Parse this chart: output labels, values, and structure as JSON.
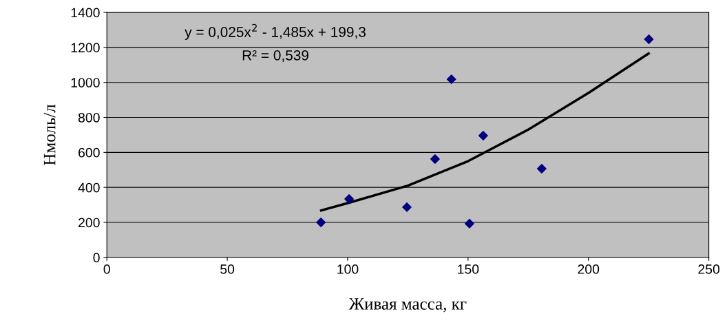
{
  "chart_data": {
    "type": "scatter",
    "xlabel": "Живая масса, кг",
    "ylabel": "Нмоль/л",
    "annotations": [
      "y = 0,025x$^{2}$ - 1,485x + 199,3",
      "R² = 0,539"
    ],
    "series": [
      {
        "color": "#000080",
        "marker": "diamond",
        "x": [
          88.9,
          100.6,
          124.6,
          136.3,
          143.1,
          150.6,
          156.3,
          180.6,
          225.1
        ],
        "values": [
          200,
          334,
          287,
          562,
          1018,
          193,
          696,
          507,
          1247
        ]
      },
      {
        "type": "line",
        "color": "#000000",
        "marker": "none",
        "x": [
          89,
          100,
          125,
          150,
          175,
          200,
          225
        ],
        "values": [
          268,
          310,
          410,
          550,
          730,
          940,
          1165
        ]
      }
    ],
    "xlim": [
      0,
      250
    ],
    "xticks": [
      0,
      50,
      100,
      150,
      200,
      250
    ],
    "ylim": [
      0,
      1400
    ],
    "yticks": [
      0,
      200,
      400,
      600,
      800,
      1000,
      1200,
      1400
    ],
    "grid": "y",
    "legend": false
  }
}
